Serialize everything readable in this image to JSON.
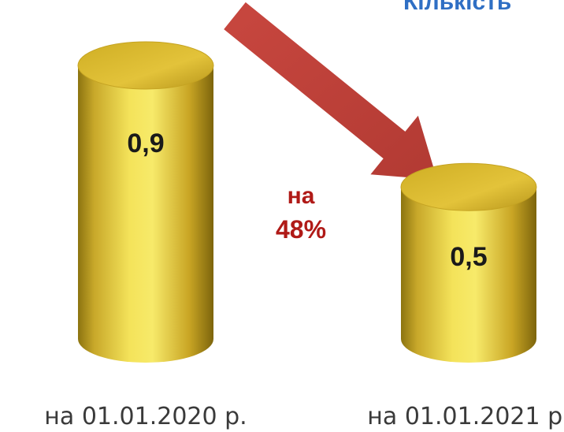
{
  "header": {
    "title_fragment": "Кількість"
  },
  "colors": {
    "cylinder_body": "#e6c93a",
    "cylinder_dark": "#8c7410",
    "cylinder_top": "#d9b62a",
    "arrow": "#c8473f",
    "change_label": "#b01a17",
    "value_label": "#1a1a1a",
    "category_label": "#3a3a3a",
    "header": "#2f6fc4"
  },
  "change": {
    "line1": "на",
    "line2": "48%",
    "direction": "decrease"
  },
  "chart_data": {
    "type": "bar",
    "style": "3d-cylinder",
    "categories": [
      "на 01.01.2020 р.",
      "на 01.01.2021 р."
    ],
    "values": [
      0.9,
      0.5
    ],
    "value_labels": [
      "0,9",
      "0,5"
    ],
    "title": "",
    "xlabel": "",
    "ylabel": "",
    "ylim": [
      0,
      0.9
    ],
    "grid": false,
    "legend": "none"
  }
}
